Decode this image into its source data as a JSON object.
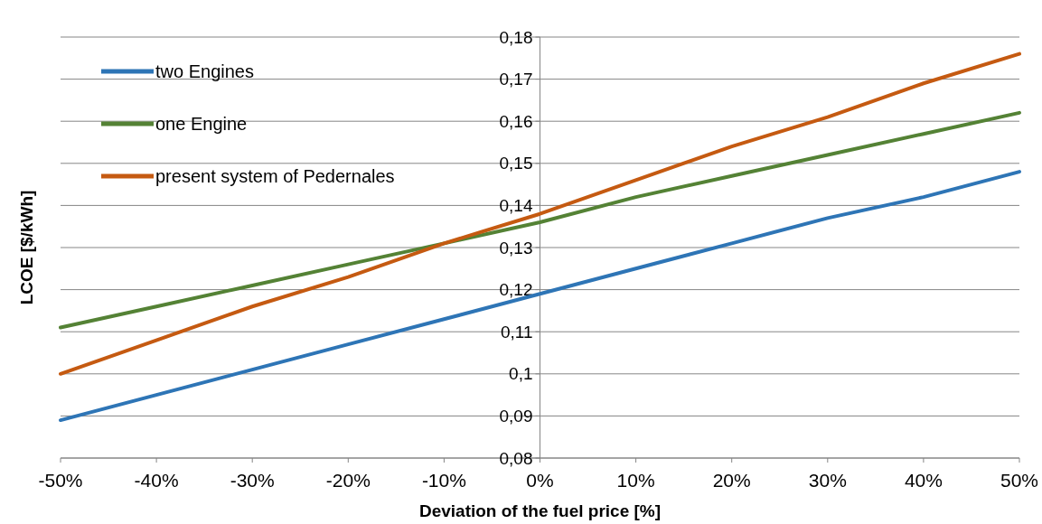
{
  "chart_data": {
    "type": "line",
    "xlabel": "Deviation of the fuel price [%]",
    "ylabel": "LCOE [$/kWh]",
    "x": [
      -50,
      -40,
      -30,
      -20,
      -10,
      0,
      10,
      20,
      30,
      40,
      50
    ],
    "xlim": [
      -50,
      50
    ],
    "xticks": [
      {
        "value": -50,
        "label": "-50%"
      },
      {
        "value": -40,
        "label": "-40%"
      },
      {
        "value": -30,
        "label": "-30%"
      },
      {
        "value": -20,
        "label": "-20%"
      },
      {
        "value": -10,
        "label": "-10%"
      },
      {
        "value": 0,
        "label": "0%"
      },
      {
        "value": 10,
        "label": "10%"
      },
      {
        "value": 20,
        "label": "20%"
      },
      {
        "value": 30,
        "label": "30%"
      },
      {
        "value": 40,
        "label": "40%"
      },
      {
        "value": 50,
        "label": "50%"
      }
    ],
    "ylim": [
      0.08,
      0.18
    ],
    "yticks": [
      {
        "value": 0.08,
        "label": "0,08"
      },
      {
        "value": 0.09,
        "label": "0,09"
      },
      {
        "value": 0.1,
        "label": "0,1"
      },
      {
        "value": 0.11,
        "label": "0,11"
      },
      {
        "value": 0.12,
        "label": "0,12"
      },
      {
        "value": 0.13,
        "label": "0,13"
      },
      {
        "value": 0.14,
        "label": "0,14"
      },
      {
        "value": 0.15,
        "label": "0,15"
      },
      {
        "value": 0.16,
        "label": "0,16"
      },
      {
        "value": 0.17,
        "label": "0,17"
      },
      {
        "value": 0.18,
        "label": "0,18"
      }
    ],
    "grid": "y",
    "legend": "top left",
    "marker": "none",
    "line_style": "solid",
    "series": [
      {
        "name": "two Engines",
        "color": "#2e75b6",
        "values": [
          0.089,
          0.095,
          0.101,
          0.107,
          0.113,
          0.119,
          0.125,
          0.131,
          0.137,
          0.142,
          0.148
        ]
      },
      {
        "name": "one Engine",
        "color": "#548235",
        "values": [
          0.111,
          0.116,
          0.121,
          0.126,
          0.131,
          0.136,
          0.142,
          0.147,
          0.152,
          0.157,
          0.162
        ]
      },
      {
        "name": "present system of Pedernales",
        "color": "#c55a11",
        "values": [
          0.1,
          0.108,
          0.116,
          0.123,
          0.131,
          0.138,
          0.146,
          0.154,
          0.161,
          0.169,
          0.176
        ]
      }
    ]
  }
}
